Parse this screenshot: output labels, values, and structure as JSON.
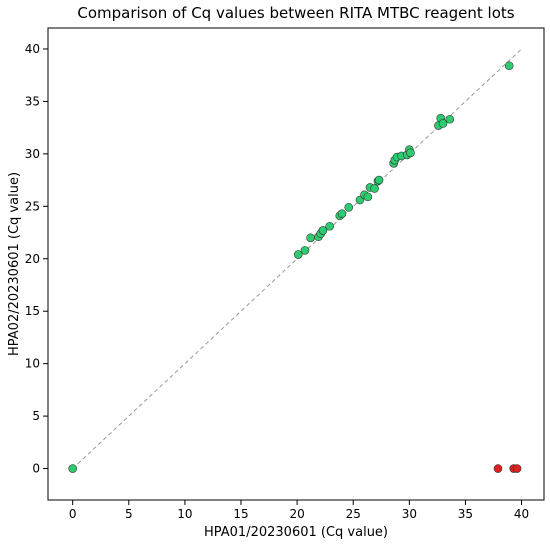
{
  "chart_data": {
    "type": "scatter",
    "title": "Comparison of Cq values between RITA MTBC reagent lots",
    "xlabel": "HPA01/20230601 (Cq value)",
    "ylabel": "HPA02/20230601 (Cq value)",
    "xlim": [
      -2.2,
      42.0
    ],
    "ylim": [
      -3.0,
      42.0
    ],
    "xticks": [
      0,
      5,
      10,
      15,
      20,
      25,
      30,
      35,
      40
    ],
    "yticks": [
      0,
      5,
      10,
      15,
      20,
      25,
      30,
      35,
      40
    ],
    "grid": false,
    "legend": "none",
    "reference_line": {
      "from": [
        0,
        0
      ],
      "to": [
        40,
        40
      ],
      "style": "dashed",
      "color": "#999999"
    },
    "colors": {
      "green": "#2ecc71",
      "red": "#e02020",
      "edge": "#333333"
    },
    "series": [
      {
        "color": "#2ecc71",
        "points": [
          [
            0.0,
            0.0
          ],
          [
            20.1,
            20.4
          ],
          [
            20.7,
            20.8
          ],
          [
            21.2,
            22.0
          ],
          [
            21.9,
            22.1
          ],
          [
            22.1,
            22.4
          ],
          [
            22.3,
            22.7
          ],
          [
            22.9,
            23.1
          ],
          [
            23.8,
            24.1
          ],
          [
            24.0,
            24.3
          ],
          [
            24.6,
            24.9
          ],
          [
            25.6,
            25.6
          ],
          [
            26.0,
            26.1
          ],
          [
            26.3,
            25.9
          ],
          [
            26.5,
            26.8
          ],
          [
            26.9,
            26.7
          ],
          [
            27.2,
            27.4
          ],
          [
            27.3,
            27.5
          ],
          [
            28.6,
            29.1
          ],
          [
            28.7,
            29.4
          ],
          [
            28.9,
            29.7
          ],
          [
            29.3,
            29.8
          ],
          [
            29.8,
            29.9
          ],
          [
            30.0,
            30.4
          ],
          [
            30.1,
            30.1
          ],
          [
            32.6,
            32.7
          ],
          [
            32.8,
            33.4
          ],
          [
            33.0,
            32.9
          ],
          [
            33.6,
            33.3
          ],
          [
            38.9,
            38.4
          ]
        ]
      },
      {
        "color": "#e02020",
        "points": [
          [
            37.9,
            0.0
          ],
          [
            39.3,
            0.0
          ],
          [
            39.6,
            0.0
          ]
        ]
      }
    ]
  }
}
